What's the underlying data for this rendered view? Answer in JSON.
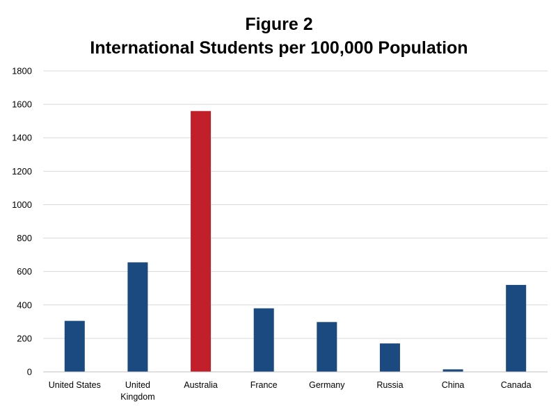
{
  "title_line1": "Figure 2",
  "title_line2": "International Students per 100,000 Population",
  "colors": {
    "default_bar": "#1a4a80",
    "highlight_bar": "#c1202a",
    "grid": "#d9d9d9",
    "axis": "#bfbfbf"
  },
  "chart_data": {
    "type": "bar",
    "title": "Figure 2 International Students per 100,000 Population",
    "xlabel": "",
    "ylabel": "",
    "categories": [
      "United States",
      "United Kingdom",
      "Australia",
      "France",
      "Germany",
      "Russia",
      "China",
      "Canada"
    ],
    "category_lines": [
      [
        "United States"
      ],
      [
        "United",
        "Kingdom"
      ],
      [
        "Australia"
      ],
      [
        "France"
      ],
      [
        "Germany"
      ],
      [
        "Russia"
      ],
      [
        "China"
      ],
      [
        "Canada"
      ]
    ],
    "values": [
      305,
      655,
      1560,
      380,
      298,
      170,
      15,
      520
    ],
    "highlight": "Australia",
    "ylim": [
      0,
      1800
    ],
    "yticks": [
      0,
      200,
      400,
      600,
      800,
      1000,
      1200,
      1400,
      1600,
      1800
    ],
    "grid": true,
    "legend": "none"
  }
}
